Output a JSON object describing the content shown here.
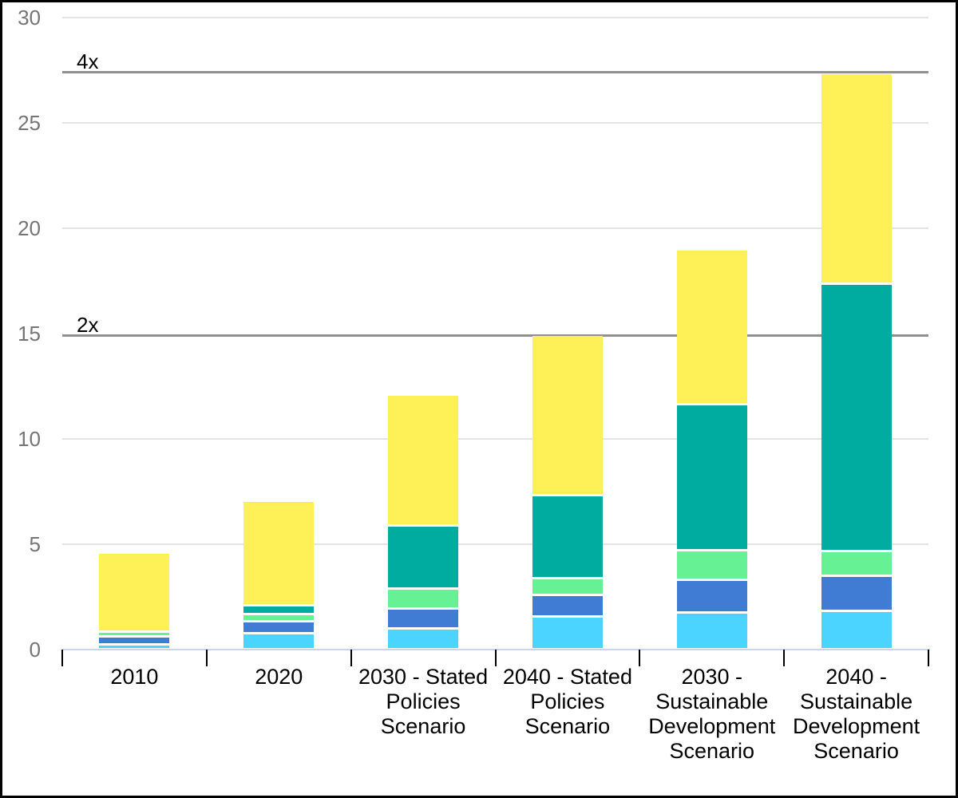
{
  "chart_data": {
    "type": "bar",
    "stacked": true,
    "title": "",
    "xlabel": "",
    "ylabel": "",
    "legend_position": "none",
    "grid": true,
    "categories": [
      [
        "2010"
      ],
      [
        "2020"
      ],
      [
        "2030 - Stated",
        "Policies",
        "Scenario"
      ],
      [
        "2040 - Stated",
        "Policies",
        "Scenario"
      ],
      [
        "2030 -",
        "Sustainable",
        "Development",
        "Scenario"
      ],
      [
        "2040 -",
        "Sustainable",
        "Development",
        "Scenario"
      ]
    ],
    "series": [
      {
        "name": "light-blue-bottom-segment",
        "color": "#4AD4FF",
        "values": [
          0.23,
          0.76,
          0.99,
          1.57,
          1.75,
          1.82
        ]
      },
      {
        "name": "blue-segment",
        "color": "#407CD3",
        "values": [
          0.38,
          0.58,
          0.96,
          1.01,
          1.58,
          1.68
        ]
      },
      {
        "name": "light-green-segment",
        "color": "#66F194",
        "values": [
          0.25,
          0.35,
          0.96,
          0.82,
          1.39,
          1.18
        ]
      },
      {
        "name": "teal-segment",
        "color": "#00ACA0",
        "values": [
          0.0,
          0.43,
          2.99,
          3.93,
          6.92,
          12.68
        ]
      },
      {
        "name": "yellow-top-segment",
        "color": "#FEF158",
        "values": [
          3.67,
          4.88,
          6.16,
          7.57,
          7.31,
          9.95
        ]
      }
    ],
    "totals": [
      4.53,
      7.0,
      12.06,
      14.9,
      18.95,
      27.31
    ],
    "y_axis": {
      "min": 0,
      "max": 30,
      "ticks": [
        0,
        5,
        10,
        15,
        20,
        25,
        30
      ]
    },
    "reference_lines": [
      {
        "label": "2x",
        "value": 14.9
      },
      {
        "label": "4x",
        "value": 27.4
      }
    ]
  },
  "colors": {
    "gridline": "#E3E3E3",
    "reference_line": "#909090",
    "baseline": "#CAD5EA",
    "y_tick_label": "#757575",
    "x_tick_label": "#000000",
    "background": "#FFFFFF",
    "border": "#000000"
  }
}
